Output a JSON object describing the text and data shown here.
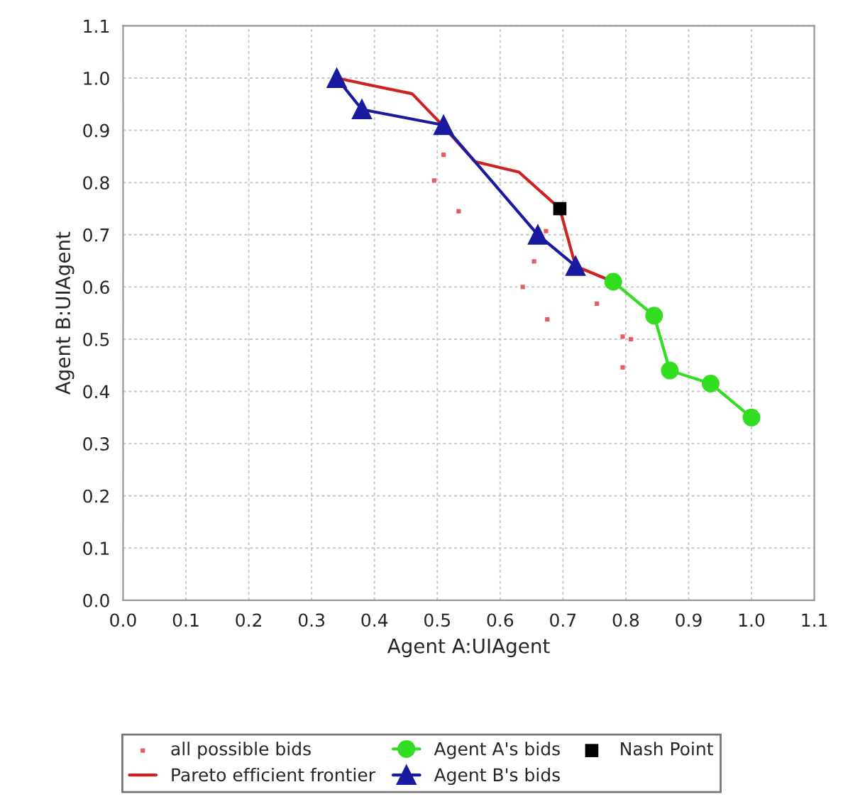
{
  "chart_data": {
    "type": "scatter",
    "xlabel": "Agent A:UIAgent",
    "ylabel": "Agent B:UIAgent",
    "xlim": [
      0.0,
      1.1
    ],
    "ylim": [
      0.0,
      1.1
    ],
    "xticks": [
      {
        "value": 0.0,
        "label": "0.0"
      },
      0.1,
      0.2,
      0.3,
      0.4,
      0.5,
      0.6,
      0.7,
      0.8,
      0.9,
      {
        "value": 1.0,
        "label": "1.0"
      },
      1.1
    ],
    "yticks": [
      {
        "value": 0.0,
        "label": "0.0"
      },
      0.1,
      0.2,
      0.3,
      0.4,
      0.5,
      0.6,
      0.7,
      0.8,
      0.9,
      {
        "value": 1.0,
        "label": "1.0"
      },
      1.1
    ],
    "grid": true,
    "legend": "bottom",
    "series": [
      {
        "name": "all possible bids",
        "marker": "square",
        "color": "#e06060",
        "x": [
          0.51,
          0.495,
          0.534,
          0.673,
          0.654,
          0.636,
          0.675,
          0.754,
          0.795,
          0.808,
          0.795
        ],
        "values": [
          0.853,
          0.804,
          0.745,
          0.707,
          0.649,
          0.6,
          0.538,
          0.568,
          0.505,
          0.5,
          0.446
        ]
      },
      {
        "name": "Pareto efficient frontier",
        "type": "line",
        "marker": "none",
        "color": "#cc2222",
        "x": [
          0.34,
          0.46,
          0.5,
          0.56,
          0.63,
          0.695,
          0.72,
          0.78
        ],
        "values": [
          1.0,
          0.97,
          0.92,
          0.84,
          0.82,
          0.75,
          0.64,
          0.61
        ]
      },
      {
        "name": "Agent A's bids",
        "type": "line",
        "marker": "circle",
        "color": "#33dd22",
        "x": [
          0.78,
          0.845,
          0.87,
          0.935,
          1.0
        ],
        "values": [
          0.61,
          0.545,
          0.44,
          0.415,
          0.35
        ]
      },
      {
        "name": "Agent B's bids",
        "type": "line",
        "marker": "triangle",
        "color": "#1a1aa0",
        "x": [
          0.34,
          0.38,
          0.51,
          0.66,
          0.72
        ],
        "values": [
          1.0,
          0.94,
          0.91,
          0.7,
          0.64
        ]
      },
      {
        "name": "Nash Point",
        "marker": "square",
        "color": "#000000",
        "x": [
          0.695
        ],
        "values": [
          0.75
        ]
      }
    ]
  }
}
